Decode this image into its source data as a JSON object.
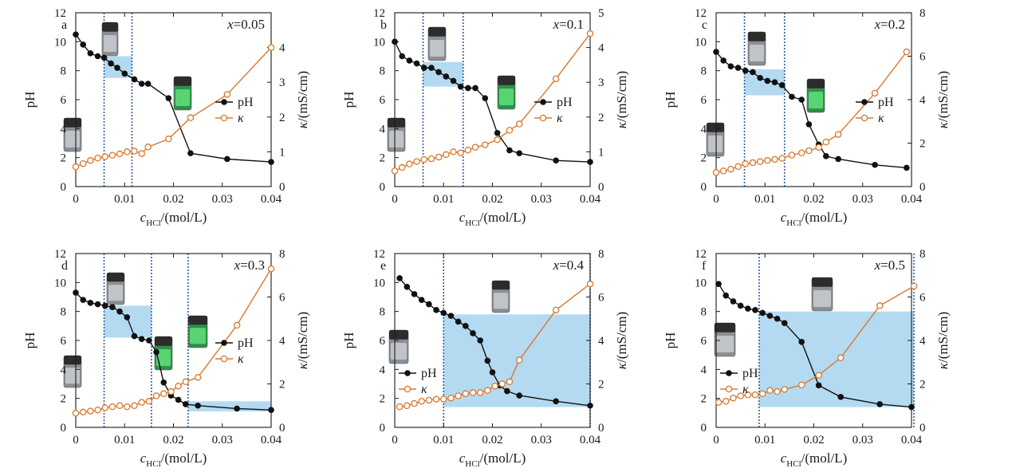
{
  "colors": {
    "ph": "#111111",
    "kappa": "#d9782d",
    "band": "#b4daf2",
    "guide": "#2f5f9f",
    "axis": "#1a1a1a"
  },
  "labels": {
    "ylabel_left": "pH",
    "ylabel_right_prefix": "κ",
    "ylabel_right_unit": "/(mS/cm)",
    "xlabel_var": "c",
    "xlabel_sub": "HCl",
    "xlabel_unit": "/(mol/L)",
    "legend_ph": "pH",
    "legend_kappa": "κ",
    "x_var": "x"
  },
  "chart_data": [
    {
      "type": "line",
      "panel": "a",
      "x_value": "=0.05",
      "xlim": [
        0,
        0.04
      ],
      "x_ticks": [
        "0",
        "0.01",
        "0.02",
        "0.03",
        "0.04"
      ],
      "ylim_left": [
        0,
        12
      ],
      "y_ticks_left": [
        "0",
        "2",
        "4",
        "6",
        "8",
        "10",
        "12"
      ],
      "ylim_right": [
        0,
        5
      ],
      "y_ticks_right": [
        "0",
        "1",
        "2",
        "3",
        "4"
      ],
      "series": [
        {
          "name": "pH",
          "axis": "left",
          "x": [
            0,
            0.0015,
            0.003,
            0.0045,
            0.0058,
            0.0072,
            0.0085,
            0.01,
            0.012,
            0.0135,
            0.0148,
            0.019,
            0.0235,
            0.031,
            0.04
          ],
          "y": [
            10.5,
            9.8,
            9.2,
            9.0,
            8.9,
            8.5,
            8.2,
            7.8,
            7.4,
            7.1,
            7.1,
            6.1,
            2.3,
            1.9,
            1.7
          ]
        },
        {
          "name": "κ",
          "axis": "right",
          "x": [
            0,
            0.0015,
            0.003,
            0.0045,
            0.006,
            0.0075,
            0.009,
            0.0105,
            0.012,
            0.0135,
            0.0148,
            0.019,
            0.0235,
            0.031,
            0.04
          ],
          "y": [
            0.57,
            0.66,
            0.75,
            0.82,
            0.86,
            0.9,
            0.94,
            1.0,
            1.02,
            0.95,
            1.14,
            1.37,
            1.98,
            2.65,
            4.0
          ]
        }
      ],
      "bands": [
        {
          "x": [
            0.0058,
            0.0115
          ],
          "y": [
            7.5,
            9.0
          ]
        }
      ],
      "guides": [
        0.0058,
        0.0115
      ],
      "legend_position": "right"
    },
    {
      "type": "line",
      "panel": "b",
      "x_value": "=0.1",
      "xlim": [
        0,
        0.04
      ],
      "x_ticks": [
        "0",
        "0.01",
        "0.02",
        "0.03",
        "0.04"
      ],
      "ylim_left": [
        0,
        12
      ],
      "y_ticks_left": [
        "0",
        "2",
        "4",
        "6",
        "8",
        "10",
        "12"
      ],
      "ylim_right": [
        0,
        5
      ],
      "y_ticks_right": [
        "0",
        "1",
        "2",
        "3",
        "4",
        "5"
      ],
      "series": [
        {
          "name": "pH",
          "axis": "left",
          "x": [
            0,
            0.0015,
            0.003,
            0.0045,
            0.006,
            0.0075,
            0.009,
            0.0105,
            0.012,
            0.0135,
            0.015,
            0.0165,
            0.0185,
            0.021,
            0.0235,
            0.0255,
            0.033,
            0.04
          ],
          "y": [
            10.0,
            9.0,
            8.7,
            8.5,
            8.2,
            8.2,
            7.9,
            7.6,
            7.3,
            6.9,
            6.8,
            6.8,
            6.1,
            3.7,
            2.5,
            2.3,
            1.8,
            1.7
          ]
        },
        {
          "name": "κ",
          "axis": "right",
          "x": [
            0,
            0.0015,
            0.003,
            0.0045,
            0.006,
            0.0075,
            0.009,
            0.0105,
            0.012,
            0.0135,
            0.015,
            0.0165,
            0.0185,
            0.021,
            0.0235,
            0.0255,
            0.033,
            0.04
          ],
          "y": [
            0.45,
            0.55,
            0.65,
            0.72,
            0.78,
            0.8,
            0.85,
            0.92,
            1.0,
            0.97,
            1.05,
            1.13,
            1.2,
            1.35,
            1.62,
            1.8,
            3.1,
            4.4
          ]
        }
      ],
      "bands": [
        {
          "x": [
            0.0058,
            0.014
          ],
          "y": [
            6.9,
            8.6
          ]
        }
      ],
      "guides": [
        0.0058,
        0.014
      ],
      "legend_position": "right"
    },
    {
      "type": "line",
      "panel": "c",
      "x_value": "=0.2",
      "xlim": [
        0,
        0.04
      ],
      "x_ticks": [
        "0",
        "0.01",
        "0.02",
        "0.03",
        "0.04"
      ],
      "ylim_left": [
        0,
        12
      ],
      "y_ticks_left": [
        "0",
        "2",
        "4",
        "6",
        "8",
        "10",
        "12"
      ],
      "ylim_right": [
        0,
        8
      ],
      "y_ticks_right": [
        "0",
        "2",
        "4",
        "6",
        "8"
      ],
      "series": [
        {
          "name": "pH",
          "axis": "left",
          "x": [
            0,
            0.0015,
            0.003,
            0.0045,
            0.006,
            0.0075,
            0.009,
            0.0105,
            0.012,
            0.0135,
            0.0155,
            0.0175,
            0.019,
            0.021,
            0.0225,
            0.025,
            0.0325,
            0.039
          ],
          "y": [
            9.3,
            8.7,
            8.3,
            8.2,
            8.0,
            7.9,
            7.5,
            7.3,
            7.2,
            7.0,
            6.2,
            6.0,
            4.3,
            2.9,
            2.1,
            1.9,
            1.5,
            1.3
          ]
        },
        {
          "name": "κ",
          "axis": "right",
          "x": [
            0,
            0.0015,
            0.003,
            0.0045,
            0.006,
            0.0075,
            0.009,
            0.0105,
            0.012,
            0.0135,
            0.0155,
            0.0175,
            0.019,
            0.021,
            0.0225,
            0.025,
            0.0325,
            0.039
          ],
          "y": [
            0.65,
            0.72,
            0.8,
            0.92,
            1.05,
            1.1,
            1.15,
            1.2,
            1.25,
            1.3,
            1.45,
            1.55,
            1.65,
            1.8,
            2.05,
            2.4,
            4.3,
            6.2
          ]
        }
      ],
      "bands": [
        {
          "x": [
            0.0058,
            0.014
          ],
          "y": [
            6.3,
            8.1
          ]
        }
      ],
      "guides": [
        0.0058,
        0.014
      ],
      "legend_position": "right"
    },
    {
      "type": "line",
      "panel": "d",
      "x_value": "=0.3",
      "xlim": [
        0,
        0.04
      ],
      "x_ticks": [
        "0",
        "0.01",
        "0.02",
        "0.03",
        "0.04"
      ],
      "ylim_left": [
        0,
        12
      ],
      "y_ticks_left": [
        "0",
        "2",
        "4",
        "6",
        "8",
        "10",
        "12"
      ],
      "ylim_right": [
        0,
        8
      ],
      "y_ticks_right": [
        "0",
        "2",
        "4",
        "6",
        "8"
      ],
      "series": [
        {
          "name": "pH",
          "axis": "left",
          "x": [
            0,
            0.0015,
            0.003,
            0.0045,
            0.006,
            0.0075,
            0.009,
            0.0105,
            0.012,
            0.0135,
            0.015,
            0.0165,
            0.018,
            0.0195,
            0.021,
            0.0225,
            0.025,
            0.033,
            0.04
          ],
          "y": [
            9.3,
            8.8,
            8.6,
            8.5,
            8.4,
            8.3,
            8.0,
            7.6,
            6.3,
            6.1,
            6.0,
            5.2,
            3.1,
            2.2,
            1.9,
            1.6,
            1.5,
            1.3,
            1.2
          ]
        },
        {
          "name": "κ",
          "axis": "right",
          "x": [
            0,
            0.0015,
            0.003,
            0.0045,
            0.006,
            0.0075,
            0.009,
            0.0105,
            0.012,
            0.0135,
            0.015,
            0.0165,
            0.018,
            0.0195,
            0.021,
            0.0225,
            0.025,
            0.033,
            0.04
          ],
          "y": [
            0.65,
            0.7,
            0.75,
            0.8,
            0.9,
            0.95,
            1.0,
            0.95,
            1.0,
            1.15,
            1.2,
            1.45,
            1.55,
            1.65,
            1.9,
            2.1,
            2.3,
            4.7,
            7.3
          ]
        }
      ],
      "bands": [
        {
          "x": [
            0.0058,
            0.0155
          ],
          "y": [
            6.2,
            8.4
          ]
        },
        {
          "x": [
            0.023,
            0.04
          ],
          "y": [
            1.1,
            1.8
          ]
        }
      ],
      "guides": [
        0.0058,
        0.0155,
        0.023
      ],
      "legend_position": "right"
    },
    {
      "type": "line",
      "panel": "e",
      "x_value": "=0.4",
      "xlim": [
        0,
        0.04
      ],
      "x_ticks": [
        "0",
        "0.01",
        "0.02",
        "0.03",
        "0.04"
      ],
      "ylim_left": [
        0,
        12
      ],
      "y_ticks_left": [
        "0",
        "2",
        "4",
        "6",
        "8",
        "10",
        "12"
      ],
      "ylim_right": [
        0,
        8
      ],
      "y_ticks_right": [
        "0",
        "2",
        "4",
        "6",
        "8"
      ],
      "series": [
        {
          "name": "pH",
          "axis": "left",
          "x": [
            0.001,
            0.0025,
            0.004,
            0.0055,
            0.007,
            0.0085,
            0.01,
            0.0115,
            0.013,
            0.0145,
            0.016,
            0.0175,
            0.019,
            0.02,
            0.0215,
            0.023,
            0.0255,
            0.033,
            0.04
          ],
          "y": [
            10.3,
            9.7,
            9.2,
            8.8,
            8.5,
            8.1,
            7.9,
            7.7,
            7.3,
            7.0,
            6.5,
            6.0,
            4.6,
            3.8,
            2.9,
            2.5,
            2.2,
            1.8,
            1.5
          ]
        },
        {
          "name": "κ",
          "axis": "right",
          "x": [
            0.001,
            0.0025,
            0.004,
            0.0055,
            0.007,
            0.0085,
            0.01,
            0.0115,
            0.013,
            0.0145,
            0.016,
            0.0175,
            0.019,
            0.0205,
            0.022,
            0.0235,
            0.0255,
            0.033,
            0.04
          ],
          "y": [
            0.95,
            1.0,
            1.1,
            1.2,
            1.25,
            1.3,
            1.3,
            1.35,
            1.45,
            1.55,
            1.6,
            1.6,
            1.7,
            1.9,
            2.0,
            2.1,
            3.1,
            5.4,
            6.6
          ]
        }
      ],
      "bands": [
        {
          "x": [
            0.01,
            0.04
          ],
          "y": [
            1.4,
            7.8
          ]
        }
      ],
      "guides": [
        0.01,
        0.04
      ],
      "legend_position": "left"
    },
    {
      "type": "line",
      "panel": "f",
      "x_value": "=0.5",
      "xlim": [
        0,
        0.04
      ],
      "x_ticks": [
        "0",
        "0.01",
        "0.02",
        "0.03",
        "0.04"
      ],
      "ylim_left": [
        0,
        12
      ],
      "y_ticks_left": [
        "0",
        "2",
        "4",
        "6",
        "8",
        "10",
        "12"
      ],
      "ylim_right": [
        0,
        8
      ],
      "y_ticks_right": [
        "0",
        "2",
        "4",
        "6",
        "8"
      ],
      "series": [
        {
          "name": "pH",
          "axis": "left",
          "x": [
            0.0005,
            0.002,
            0.0035,
            0.005,
            0.0065,
            0.008,
            0.0095,
            0.011,
            0.0125,
            0.014,
            0.0175,
            0.021,
            0.0255,
            0.0335,
            0.04
          ],
          "y": [
            9.9,
            9.1,
            8.7,
            8.4,
            8.2,
            8.1,
            7.9,
            7.7,
            7.5,
            7.2,
            5.9,
            2.9,
            2.1,
            1.6,
            1.4
          ]
        },
        {
          "name": "κ",
          "axis": "right",
          "x": [
            0.0005,
            0.002,
            0.0035,
            0.005,
            0.0065,
            0.008,
            0.0095,
            0.011,
            0.0125,
            0.014,
            0.0175,
            0.021,
            0.0255,
            0.0335,
            0.0405
          ],
          "y": [
            1.15,
            1.2,
            1.35,
            1.45,
            1.5,
            1.5,
            1.55,
            1.7,
            1.65,
            1.75,
            1.95,
            2.4,
            3.2,
            5.6,
            6.5
          ]
        }
      ],
      "bands": [
        {
          "x": [
            0.0088,
            0.0405
          ],
          "y": [
            1.4,
            8.0
          ]
        }
      ],
      "guides": [
        0.0088,
        0.0405
      ],
      "legend_position": "left"
    }
  ]
}
